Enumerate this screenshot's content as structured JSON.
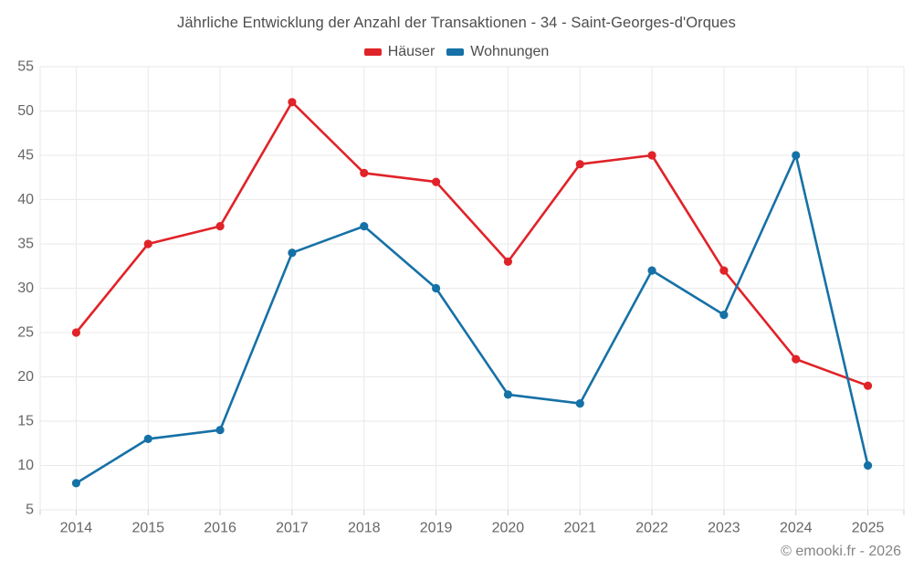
{
  "title": "Jährliche Entwicklung der Anzahl der Transaktionen - 34 - Saint-Georges-d'Orques",
  "footer": {
    "copyright": "© emooki.fr - 2026"
  },
  "colors": {
    "haeuser": "#e02328",
    "wohnungen": "#1671a6",
    "grid": "#e9e9e9",
    "tick": "#cfcfcf",
    "axis_label": "#666666"
  },
  "chart_data": {
    "type": "line",
    "title": "Jährliche Entwicklung der Anzahl der Transaktionen - 34 - Saint-Georges-d'Orques",
    "categories": [
      "2014",
      "2015",
      "2016",
      "2017",
      "2018",
      "2019",
      "2020",
      "2021",
      "2022",
      "2023",
      "2024",
      "2025"
    ],
    "series": [
      {
        "name": "Häuser",
        "color": "#e02328",
        "values": [
          25,
          35,
          37,
          51,
          43,
          42,
          33,
          44,
          45,
          32,
          22,
          19
        ]
      },
      {
        "name": "Wohnungen",
        "color": "#1671a6",
        "values": [
          8,
          13,
          14,
          34,
          37,
          30,
          18,
          17,
          32,
          27,
          45,
          10
        ]
      }
    ],
    "xlabel": "",
    "ylabel": "",
    "ylim": [
      5,
      55
    ],
    "ytick_step": 5,
    "grid": true,
    "legend_position": "top",
    "marker": "circle"
  }
}
